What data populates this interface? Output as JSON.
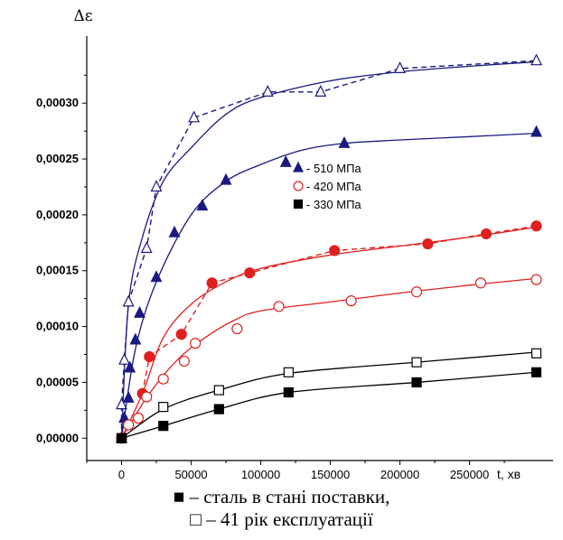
{
  "chart_data": {
    "type": "line",
    "ylabel": "Δε",
    "xlabel": "t, хв",
    "xlim": [
      -25000,
      310000
    ],
    "ylim": [
      -2e-05,
      0.00036
    ],
    "xticks": [
      0,
      50000,
      100000,
      150000,
      200000,
      250000
    ],
    "xtick_labels": [
      "0",
      "50000",
      "100000",
      "150000",
      "200000",
      "250000"
    ],
    "yticks": [
      0.0,
      5e-05,
      0.0001,
      0.00015,
      0.0002,
      0.00025,
      0.0003
    ],
    "ytick_labels": [
      "0,00000",
      "0,00005",
      "0,00010",
      "0,00015",
      "0,00020",
      "0,00025",
      "0,00030"
    ],
    "legend_position": "center",
    "grid": false,
    "legend": [
      {
        "label": "- 510 МПа",
        "marker": "triangle",
        "color": "#1a1a80"
      },
      {
        "label": "- 420 МПа",
        "marker": "circle-open",
        "color": "#e02020"
      },
      {
        "label": "- 330 МПа",
        "marker": "square",
        "color": "#000000"
      }
    ],
    "series": [
      {
        "stress": "510 МПа",
        "state": "41 рік експлуатації",
        "marker": "triangle-open",
        "color": "#1a1a80",
        "dashed": true,
        "points": [
          [
            0,
            0
          ],
          [
            0,
            3e-05
          ],
          [
            2000,
            7e-05
          ],
          [
            5000,
            0.000122
          ],
          [
            18000,
            0.00017
          ],
          [
            25000,
            0.000225
          ],
          [
            52000,
            0.000287
          ],
          [
            105000,
            0.00031
          ],
          [
            143000,
            0.00031
          ],
          [
            200000,
            0.000331
          ],
          [
            298000,
            0.000338
          ]
        ],
        "fit": [
          [
            0,
            0
          ],
          [
            5000,
            0.00012
          ],
          [
            15000,
            0.00018
          ],
          [
            30000,
            0.00023
          ],
          [
            50000,
            0.00026
          ],
          [
            75000,
            0.00029
          ],
          [
            100000,
            0.000305
          ],
          [
            150000,
            0.00032
          ],
          [
            200000,
            0.000328
          ],
          [
            250000,
            0.000333
          ],
          [
            298000,
            0.000337
          ]
        ]
      },
      {
        "stress": "510 МПа",
        "state": "сталь в стані поставки",
        "marker": "triangle",
        "color": "#1a1a80",
        "dashed": false,
        "points": [
          [
            0,
            0
          ],
          [
            2000,
            1.8e-05
          ],
          [
            5000,
            3.6e-05
          ],
          [
            6000,
            6.3e-05
          ],
          [
            10000,
            8.8e-05
          ],
          [
            13000,
            0.000112
          ],
          [
            25000,
            0.000144
          ],
          [
            38000,
            0.000184
          ],
          [
            58000,
            0.000208
          ],
          [
            75000,
            0.000231
          ],
          [
            118000,
            0.000247
          ],
          [
            160000,
            0.000264
          ],
          [
            298000,
            0.000274
          ]
        ],
        "fit": [
          [
            0,
            0
          ],
          [
            10000,
            8e-05
          ],
          [
            25000,
            0.00014
          ],
          [
            50000,
            0.0002
          ],
          [
            75000,
            0.00023
          ],
          [
            100000,
            0.000245
          ],
          [
            130000,
            0.000258
          ],
          [
            160000,
            0.000264
          ],
          [
            200000,
            0.000267
          ],
          [
            250000,
            0.00027
          ],
          [
            298000,
            0.000273
          ]
        ]
      },
      {
        "stress": "420 МПа",
        "state": "сталь в стані поставки",
        "marker": "circle",
        "color": "#e02020",
        "dashed": true,
        "points": [
          [
            15000,
            4e-05
          ],
          [
            20000,
            7.3e-05
          ],
          [
            43000,
            9.3e-05
          ],
          [
            65000,
            0.000139
          ],
          [
            92000,
            0.000148
          ],
          [
            153000,
            0.000168
          ],
          [
            220000,
            0.000174
          ],
          [
            262000,
            0.000183
          ],
          [
            298000,
            0.00019
          ]
        ],
        "fit": [
          [
            0,
            0
          ],
          [
            15000,
            4e-05
          ],
          [
            30000,
            9e-05
          ],
          [
            50000,
            0.00012
          ],
          [
            75000,
            0.00014
          ],
          [
            100000,
            0.000152
          ],
          [
            150000,
            0.000164
          ],
          [
            200000,
            0.000172
          ],
          [
            250000,
            0.00018
          ],
          [
            298000,
            0.000189
          ]
        ]
      },
      {
        "stress": "420 МПа",
        "state": "41 рік експлуатації",
        "marker": "circle-open",
        "color": "#e02020",
        "dashed": false,
        "points": [
          [
            0,
            0
          ],
          [
            5000,
            1.2e-05
          ],
          [
            12000,
            1.8e-05
          ],
          [
            18000,
            3.7e-05
          ],
          [
            30000,
            5.3e-05
          ],
          [
            45000,
            6.9e-05
          ],
          [
            53000,
            8.5e-05
          ],
          [
            83000,
            9.8e-05
          ],
          [
            113000,
            0.000118
          ],
          [
            165000,
            0.000123
          ],
          [
            212000,
            0.000131
          ],
          [
            258000,
            0.000139
          ],
          [
            298000,
            0.000142
          ]
        ],
        "fit": [
          [
            0,
            0
          ],
          [
            20000,
            4e-05
          ],
          [
            40000,
            7e-05
          ],
          [
            60000,
            9e-05
          ],
          [
            80000,
            0.000105
          ],
          [
            100000,
            0.000114
          ],
          [
            150000,
            0.000122
          ],
          [
            200000,
            0.00013
          ],
          [
            250000,
            0.000137
          ],
          [
            298000,
            0.000143
          ]
        ]
      },
      {
        "stress": "330 МПа",
        "state": "41 рік експлуатації",
        "marker": "square-open",
        "color": "#000000",
        "dashed": false,
        "points": [
          [
            0,
            0
          ],
          [
            30000,
            2.8e-05
          ],
          [
            70000,
            4.3e-05
          ],
          [
            120000,
            5.9e-05
          ],
          [
            212000,
            6.8e-05
          ],
          [
            298000,
            7.6e-05
          ]
        ],
        "fit": [
          [
            0,
            0
          ],
          [
            30000,
            2.6e-05
          ],
          [
            70000,
            4.3e-05
          ],
          [
            120000,
            5.8e-05
          ],
          [
            212000,
            6.8e-05
          ],
          [
            298000,
            7.7e-05
          ]
        ]
      },
      {
        "stress": "330 МПа",
        "state": "сталь в стані поставки",
        "marker": "square",
        "color": "#000000",
        "dashed": false,
        "points": [
          [
            0,
            0
          ],
          [
            30000,
            1.1e-05
          ],
          [
            70000,
            2.6e-05
          ],
          [
            120000,
            4.1e-05
          ],
          [
            212000,
            5e-05
          ],
          [
            298000,
            5.9e-05
          ]
        ],
        "fit": [
          [
            0,
            0
          ],
          [
            30000,
            1.1e-05
          ],
          [
            70000,
            2.6e-05
          ],
          [
            120000,
            4.1e-05
          ],
          [
            212000,
            5e-05
          ],
          [
            298000,
            5.9e-05
          ]
        ]
      }
    ]
  },
  "caption": {
    "line1": "■ – сталь в стані поставки,",
    "line2": "□ – 41 рік експлуатації"
  }
}
